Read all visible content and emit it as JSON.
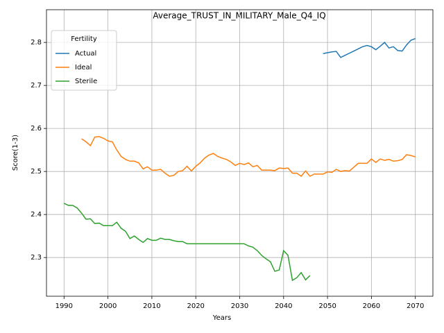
{
  "chart_data": {
    "type": "line",
    "title": "Average_TRUST_IN_MILITARY_Male_Q4_IQ",
    "x_label": "Years",
    "y_label": "Score(1-3)",
    "legend_title": "Fertility",
    "legend": "upper left",
    "grid": true,
    "x": [
      1990,
      1991,
      1992,
      1993,
      1994,
      1995,
      1996,
      1997,
      1998,
      1999,
      2000,
      2001,
      2002,
      2003,
      2004,
      2005,
      2006,
      2007,
      2008,
      2009,
      2010,
      2011,
      2012,
      2013,
      2014,
      2015,
      2016,
      2017,
      2018,
      2019,
      2020,
      2021,
      2022,
      2023,
      2024,
      2025,
      2026,
      2027,
      2028,
      2029,
      2030,
      2031,
      2032,
      2033,
      2034,
      2035,
      2036,
      2037,
      2038,
      2039,
      2040,
      2041,
      2042,
      2043,
      2044,
      2045,
      2046,
      2047,
      2048,
      2049,
      2050,
      2051,
      2052,
      2053,
      2054,
      2055,
      2056,
      2057,
      2058,
      2059,
      2060,
      2061,
      2062,
      2063,
      2064,
      2065,
      2066,
      2067,
      2068,
      2069,
      2070
    ],
    "xlim": [
      1986,
      2074
    ],
    "xticks": [
      1990,
      2000,
      2010,
      2020,
      2030,
      2040,
      2050,
      2060,
      2070
    ],
    "ylim": [
      2.21,
      2.876
    ],
    "yticks": [
      2.3,
      2.4,
      2.5,
      2.6,
      2.7,
      2.8
    ],
    "series": [
      {
        "name": "Actual",
        "color": "#1f77b4",
        "values": [
          null,
          null,
          null,
          null,
          null,
          null,
          null,
          null,
          null,
          null,
          null,
          null,
          null,
          null,
          null,
          null,
          null,
          null,
          null,
          null,
          null,
          null,
          null,
          null,
          null,
          null,
          null,
          null,
          null,
          null,
          null,
          null,
          null,
          null,
          null,
          null,
          null,
          null,
          null,
          null,
          null,
          null,
          null,
          null,
          null,
          null,
          null,
          null,
          null,
          null,
          null,
          null,
          null,
          null,
          null,
          null,
          null,
          null,
          null,
          2.774,
          2.776,
          2.778,
          2.779,
          2.765,
          2.77,
          2.775,
          2.78,
          2.785,
          2.79,
          2.793,
          2.79,
          2.783,
          2.791,
          2.8,
          2.787,
          2.79,
          2.781,
          2.78,
          2.794,
          2.805,
          2.809
        ]
      },
      {
        "name": "Ideal",
        "color": "#ff7f0e",
        "values": [
          null,
          null,
          null,
          null,
          2.576,
          2.569,
          2.56,
          2.58,
          2.581,
          2.577,
          2.571,
          2.569,
          2.55,
          2.535,
          2.528,
          2.524,
          2.524,
          2.52,
          2.506,
          2.511,
          2.503,
          2.503,
          2.505,
          2.496,
          2.489,
          2.491,
          2.5,
          2.502,
          2.512,
          2.501,
          2.512,
          2.52,
          2.531,
          2.538,
          2.542,
          2.535,
          2.531,
          2.528,
          2.522,
          2.514,
          2.519,
          2.516,
          2.52,
          2.511,
          2.514,
          2.503,
          2.503,
          2.503,
          2.502,
          2.508,
          2.507,
          2.508,
          2.496,
          2.496,
          2.489,
          2.501,
          2.489,
          2.494,
          2.494,
          2.494,
          2.499,
          2.498,
          2.505,
          2.5,
          2.502,
          2.501,
          2.51,
          2.519,
          2.519,
          2.519,
          2.529,
          2.521,
          2.529,
          2.526,
          2.528,
          2.524,
          2.525,
          2.528,
          2.539,
          2.537,
          2.534
        ]
      },
      {
        "name": "Sterile",
        "color": "#2ca02c",
        "values": [
          2.426,
          2.421,
          2.421,
          2.415,
          2.403,
          2.389,
          2.39,
          2.379,
          2.38,
          2.374,
          2.374,
          2.374,
          2.382,
          2.368,
          2.361,
          2.344,
          2.35,
          2.342,
          2.335,
          2.344,
          2.34,
          2.34,
          2.345,
          2.342,
          2.342,
          2.339,
          2.337,
          2.337,
          2.332,
          2.332,
          2.332,
          2.332,
          2.332,
          2.332,
          2.332,
          2.332,
          2.332,
          2.332,
          2.332,
          2.332,
          2.332,
          2.332,
          2.327,
          2.324,
          2.316,
          2.305,
          2.297,
          2.29,
          2.268,
          2.271,
          2.316,
          2.305,
          2.247,
          2.253,
          2.265,
          2.248,
          2.258,
          null,
          null,
          null,
          null,
          null,
          null,
          null,
          null,
          null,
          null,
          null,
          null,
          null,
          null,
          null,
          null,
          null,
          null,
          null,
          null,
          null,
          null,
          null,
          null
        ]
      }
    ]
  }
}
